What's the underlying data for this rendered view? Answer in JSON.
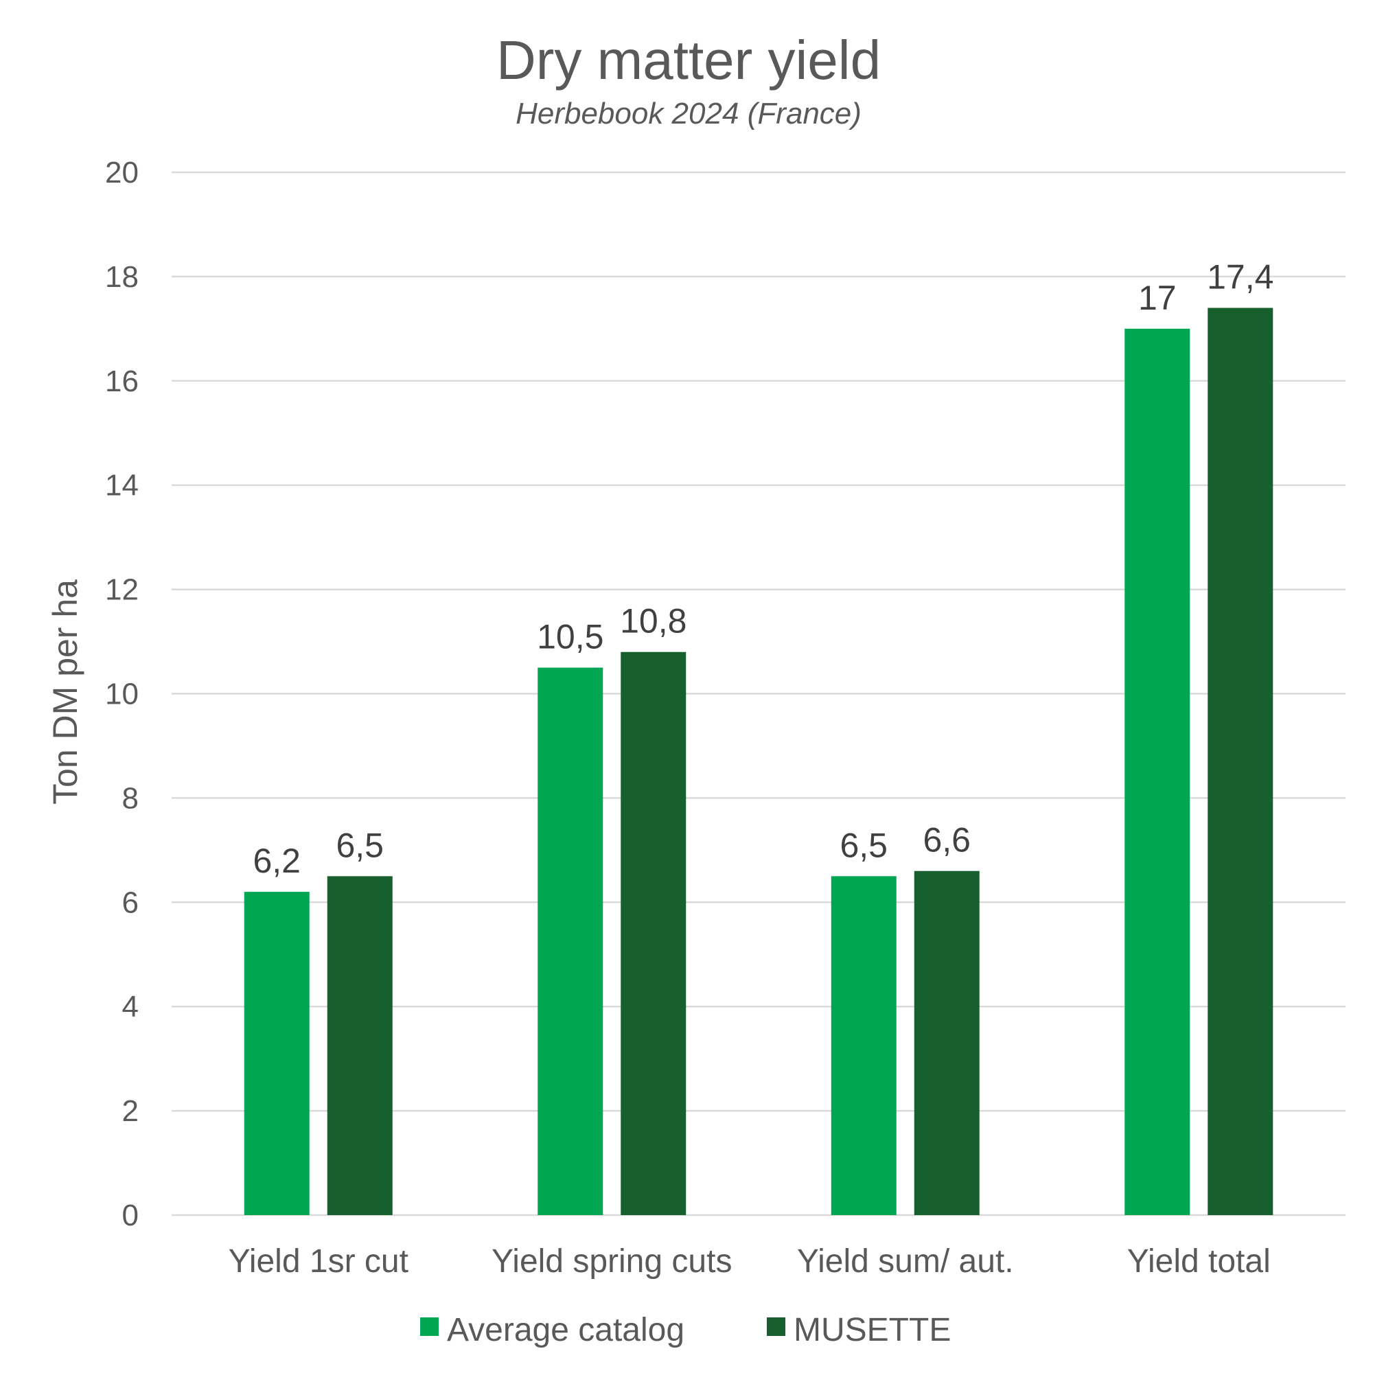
{
  "chart_data": {
    "type": "bar",
    "title": "Dry matter yield",
    "subtitle": "Herbebook 2024 (France)",
    "ylabel": "Ton DM per ha",
    "xlabel": "",
    "ylim": [
      0,
      20
    ],
    "yticks": [
      0,
      2,
      4,
      6,
      8,
      10,
      12,
      14,
      16,
      18,
      20
    ],
    "grid": true,
    "legend_position": "bottom",
    "categories": [
      "Yield 1sr cut",
      "Yield spring cuts",
      "Yield sum/ aut.",
      "Yield total"
    ],
    "series": [
      {
        "name": "Average catalog",
        "color": "#00A651",
        "values": [
          6.2,
          10.5,
          6.5,
          17
        ],
        "labels": [
          "6,2",
          "10,5",
          "6,5",
          "17"
        ]
      },
      {
        "name": "MUSETTE",
        "color": "#16602E",
        "values": [
          6.5,
          10.8,
          6.6,
          17.4
        ],
        "labels": [
          "6,5",
          "10,8",
          "6,6",
          "17,4"
        ]
      }
    ]
  }
}
